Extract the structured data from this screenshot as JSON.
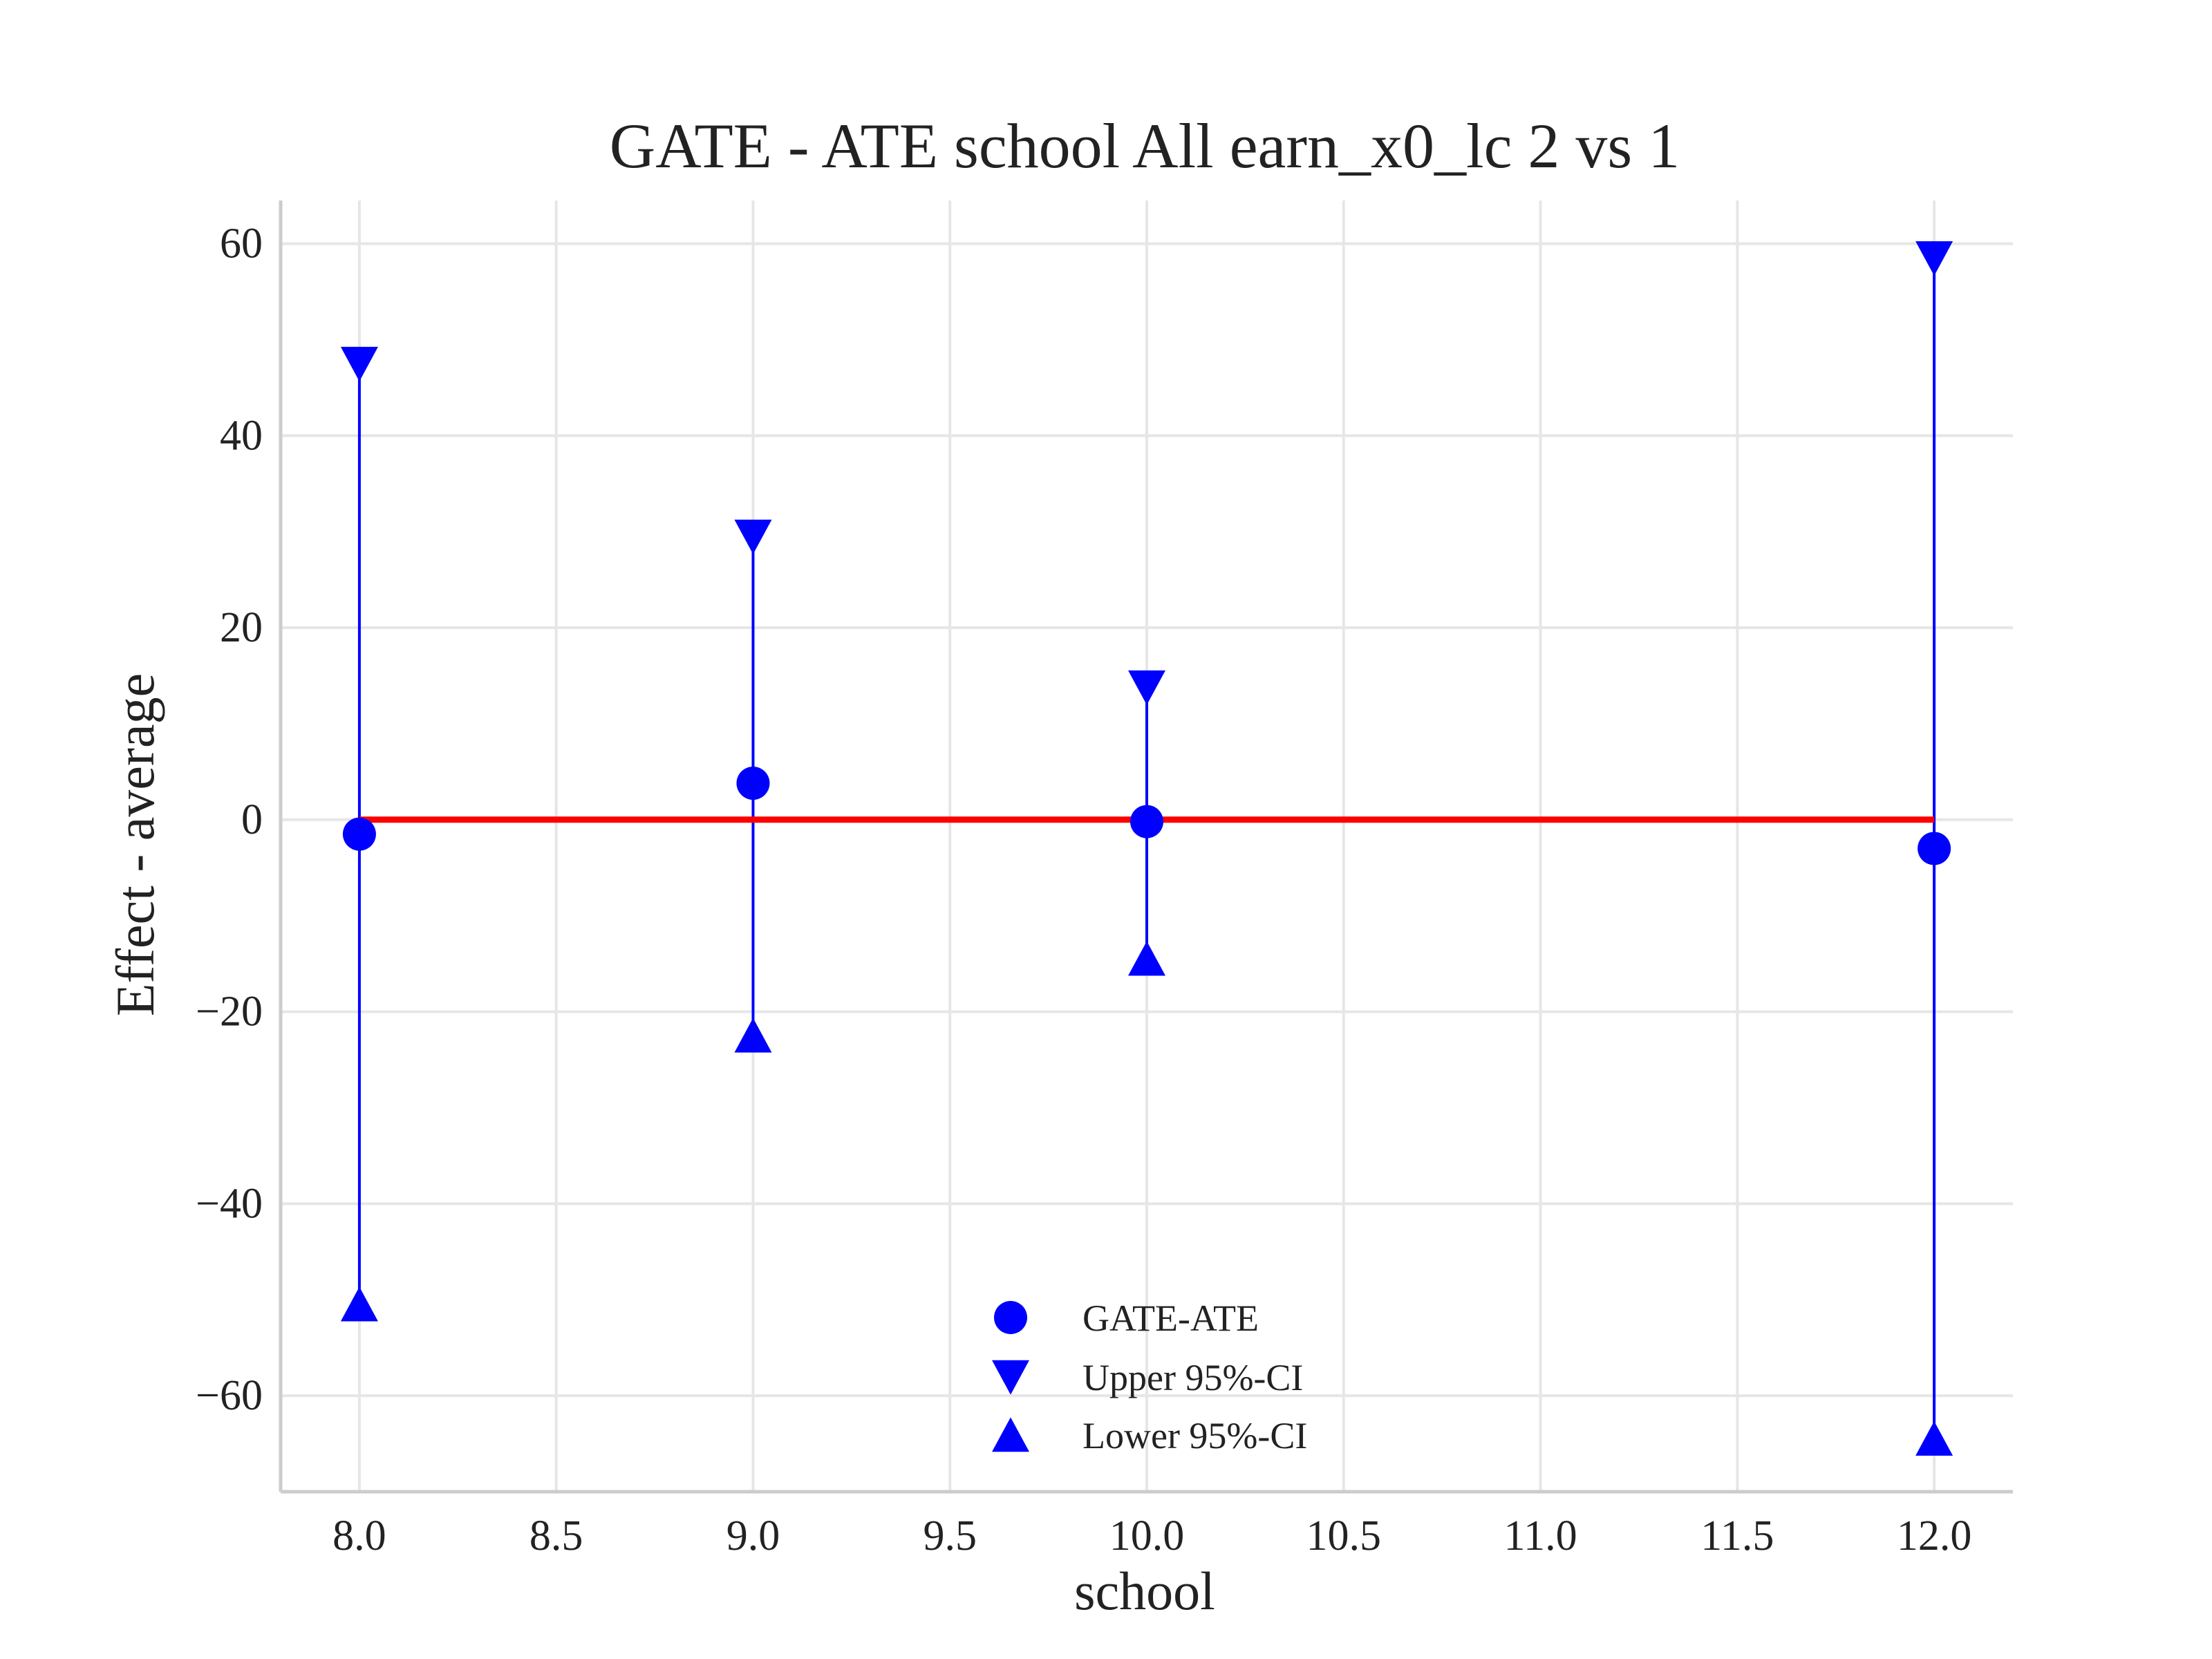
{
  "chart_data": {
    "type": "scatter",
    "title": "GATE - ATE school All earn_x0_lc  2 vs 1",
    "xlabel": "school",
    "ylabel": "Effect - average",
    "xlim": [
      7.8,
      12.2
    ],
    "ylim": [
      -70,
      64.5
    ],
    "xticks": [
      8.0,
      8.5,
      9.0,
      9.5,
      10.0,
      10.5,
      11.0,
      11.5,
      12.0
    ],
    "xtick_labels": [
      "8.0",
      "8.5",
      "9.0",
      "9.5",
      "10.0",
      "10.5",
      "11.0",
      "11.5",
      "12.0"
    ],
    "yticks": [
      -60,
      -40,
      -20,
      0,
      20,
      40,
      60
    ],
    "ytick_labels": [
      "−60",
      "−40",
      "−20",
      "0",
      "20",
      "40",
      "60"
    ],
    "grid": true,
    "legend_position": "bottom-center",
    "x": [
      8.0,
      9.0,
      10.0,
      12.0
    ],
    "series": [
      {
        "name": "GATE-ATE",
        "marker": "circle",
        "color": "#0000ff",
        "values": [
          -1.5,
          3.8,
          -0.2,
          -3.0
        ]
      },
      {
        "name": "Upper 95%-CI",
        "marker": "triangle-down",
        "color": "#0000ff",
        "values": [
          47.5,
          29.5,
          13.8,
          58.5
        ]
      },
      {
        "name": "Lower 95%-CI",
        "marker": "triangle-up",
        "color": "#0000ff",
        "values": [
          -50.5,
          -22.5,
          -14.5,
          -64.5
        ]
      }
    ],
    "reference_line": {
      "y": 0,
      "x_range": [
        8.0,
        12.0
      ],
      "color": "#ff0000"
    },
    "colors": {
      "points": "#0000ff",
      "reference": "#ff0000",
      "grid": "#e6e6e6",
      "axis": "#cccccc"
    }
  }
}
